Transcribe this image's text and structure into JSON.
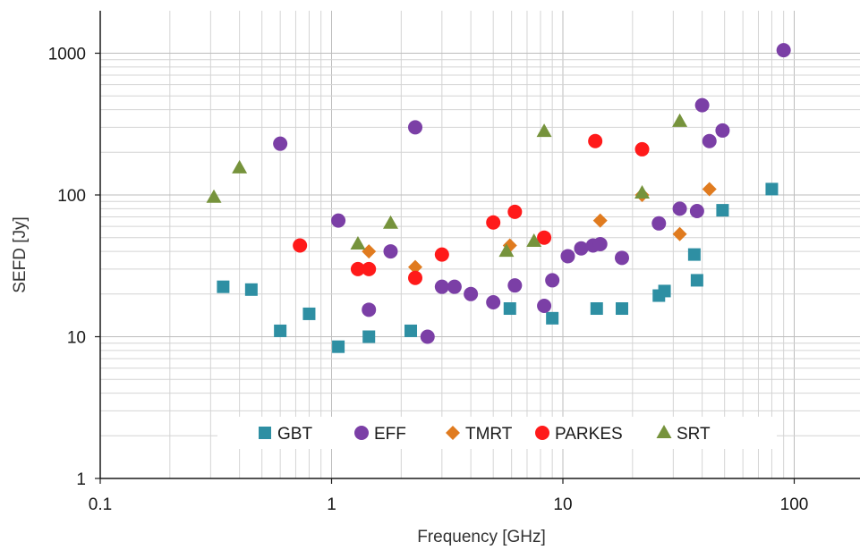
{
  "chart_data": {
    "type": "scatter",
    "xlabel": "Frequency [GHz]",
    "ylabel": "SEFD [Jy]",
    "x_scale": "log",
    "y_scale": "log",
    "xlim": [
      0.1,
      200
    ],
    "ylim": [
      1,
      2000
    ],
    "x_ticks": [
      {
        "value": 0.1,
        "label": "0.1"
      },
      {
        "value": 1,
        "label": "1"
      },
      {
        "value": 10,
        "label": "10"
      },
      {
        "value": 100,
        "label": "100"
      }
    ],
    "y_ticks": [
      {
        "value": 1,
        "label": "1"
      },
      {
        "value": 10,
        "label": "10"
      },
      {
        "value": 100,
        "label": "100"
      },
      {
        "value": 1000,
        "label": "1000"
      }
    ],
    "grid": true,
    "legend_position": "bottom-inside",
    "series": [
      {
        "name": "GBT",
        "marker": "square",
        "color": "#2e8fa3",
        "points": [
          [
            0.34,
            22.5
          ],
          [
            0.45,
            21.5
          ],
          [
            0.6,
            11
          ],
          [
            0.8,
            14.5
          ],
          [
            1.07,
            8.5
          ],
          [
            1.45,
            10
          ],
          [
            2.2,
            11
          ],
          [
            5.9,
            15.8
          ],
          [
            9.0,
            13.5
          ],
          [
            14.0,
            15.8
          ],
          [
            18.0,
            15.8
          ],
          [
            26.0,
            19.5
          ],
          [
            27.5,
            21.0
          ],
          [
            37.0,
            38
          ],
          [
            38.0,
            25
          ],
          [
            49.0,
            78
          ],
          [
            80.0,
            110
          ]
        ]
      },
      {
        "name": "EFF",
        "marker": "circle",
        "color": "#7b3fa6",
        "points": [
          [
            0.6,
            230
          ],
          [
            1.07,
            66
          ],
          [
            1.45,
            15.5
          ],
          [
            1.8,
            40
          ],
          [
            2.3,
            300
          ],
          [
            2.6,
            10
          ],
          [
            3.0,
            22.5
          ],
          [
            3.4,
            22.5
          ],
          [
            4.0,
            20
          ],
          [
            5.0,
            17.5
          ],
          [
            6.2,
            23
          ],
          [
            8.3,
            16.5
          ],
          [
            9.0,
            25
          ],
          [
            10.5,
            37
          ],
          [
            12.0,
            42
          ],
          [
            13.5,
            44
          ],
          [
            14.5,
            45
          ],
          [
            18.0,
            36
          ],
          [
            26.0,
            63
          ],
          [
            32.0,
            80
          ],
          [
            38.0,
            77
          ],
          [
            40.0,
            430
          ],
          [
            43.0,
            240
          ],
          [
            49.0,
            285
          ],
          [
            90.0,
            1050
          ]
        ]
      },
      {
        "name": "TMRT",
        "marker": "diamond",
        "color": "#e07b1f",
        "points": [
          [
            1.45,
            40
          ],
          [
            2.3,
            31
          ],
          [
            5.9,
            44
          ],
          [
            14.5,
            66
          ],
          [
            22.0,
            100
          ],
          [
            32.0,
            53
          ],
          [
            43.0,
            110
          ]
        ]
      },
      {
        "name": "PARKES",
        "marker": "circle",
        "color": "#ff1a1a",
        "points": [
          [
            0.73,
            44
          ],
          [
            1.3,
            30
          ],
          [
            1.45,
            30
          ],
          [
            2.3,
            26
          ],
          [
            3.0,
            38
          ],
          [
            5.0,
            64
          ],
          [
            6.2,
            76
          ],
          [
            8.3,
            50
          ],
          [
            13.8,
            240
          ],
          [
            22.0,
            210
          ]
        ]
      },
      {
        "name": "SRT",
        "marker": "triangle",
        "color": "#76933c",
        "points": [
          [
            0.31,
            96
          ],
          [
            0.4,
            155
          ],
          [
            1.3,
            45
          ],
          [
            1.8,
            63
          ],
          [
            5.7,
            40
          ],
          [
            7.5,
            47
          ],
          [
            8.3,
            280
          ],
          [
            22.0,
            103
          ],
          [
            32.0,
            330
          ]
        ]
      }
    ]
  }
}
